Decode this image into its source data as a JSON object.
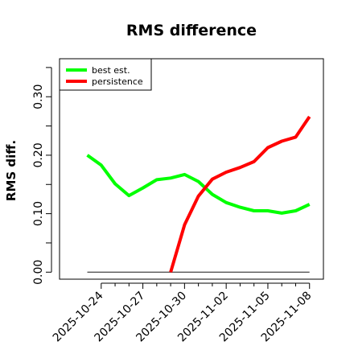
{
  "chart_data": {
    "type": "line",
    "title": "RMS difference",
    "xlabel": "",
    "ylabel": "RMS diff.",
    "x_ticks": [
      "2025-10-24",
      "2025-10-27",
      "2025-10-30",
      "2025-11-02",
      "2025-11-05",
      "2025-11-08"
    ],
    "y_ticks": [
      "0.00",
      "0.10",
      "0.20",
      "0.30"
    ],
    "xlim": [
      "2025-10-21",
      "2025-11-09"
    ],
    "ylim": [
      -0.012,
      0.365
    ],
    "legend_position": "top-left",
    "grid": false,
    "series": [
      {
        "name": "best est.",
        "color": "#00ff00",
        "x": [
          "2025-10-23",
          "2025-10-24",
          "2025-10-25",
          "2025-10-26",
          "2025-10-27",
          "2025-10-28",
          "2025-10-29",
          "2025-10-30",
          "2025-10-31",
          "2025-11-01",
          "2025-11-02",
          "2025-11-03",
          "2025-11-04",
          "2025-11-05",
          "2025-11-06",
          "2025-11-07",
          "2025-11-08"
        ],
        "y": [
          0.2,
          0.183,
          0.151,
          0.131,
          0.144,
          0.158,
          0.161,
          0.167,
          0.155,
          0.133,
          0.119,
          0.111,
          0.105,
          0.105,
          0.101,
          0.105,
          0.116
        ]
      },
      {
        "name": "persistence",
        "color": "#ff0000",
        "x": [
          "2025-10-29",
          "2025-10-30",
          "2025-10-31",
          "2025-11-01",
          "2025-11-02",
          "2025-11-03",
          "2025-11-04",
          "2025-11-05",
          "2025-11-06",
          "2025-11-07",
          "2025-11-08"
        ],
        "y": [
          0.0,
          0.081,
          0.13,
          0.159,
          0.171,
          0.179,
          0.189,
          0.213,
          0.224,
          0.231,
          0.266
        ]
      },
      {
        "color": "#555555",
        "x": [
          "2025-10-23",
          "2025-11-08"
        ],
        "y": [
          0.0,
          0.0
        ]
      }
    ]
  }
}
